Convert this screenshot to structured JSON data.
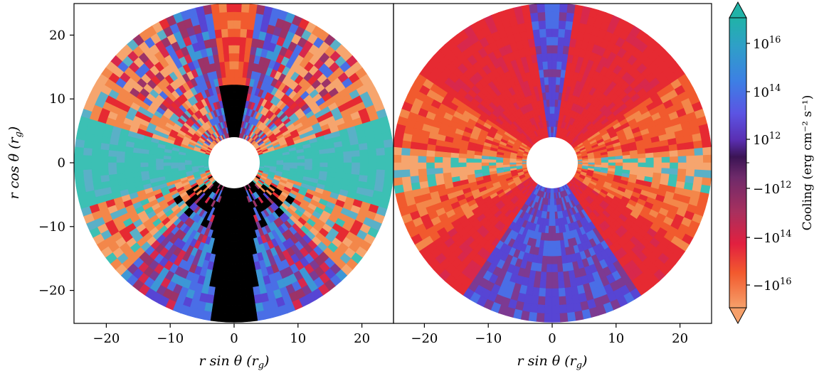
{
  "chart_data": [
    {
      "type": "heatmap",
      "projection": "polar",
      "panel": "left",
      "xlabel": "r sin θ (r_g)",
      "ylabel": "r cos θ (r_g)",
      "xlim": [
        -25,
        25
      ],
      "ylim": [
        -25,
        25
      ],
      "xticks": [
        -20,
        -10,
        0,
        10,
        20
      ],
      "yticks": [
        20,
        10,
        0,
        -10,
        -20
      ],
      "r_inner": 4,
      "r_outer": 25,
      "zones": [
        {
          "theta_deg": [
            0,
            8
          ],
          "category": "heating_1e16"
        },
        {
          "theta_deg": [
            8,
            25
          ],
          "category": "mixed_cooling_heating"
        },
        {
          "theta_deg": [
            25,
            55
          ],
          "category": "mixed_heating_dominant"
        },
        {
          "theta_deg": [
            55,
            72
          ],
          "category": "mixed_orange_red"
        },
        {
          "theta_deg": [
            72,
            108
          ],
          "category": "cooling_1e16"
        },
        {
          "theta_deg": [
            108,
            135
          ],
          "category": "mixed_orange_red_teal"
        },
        {
          "theta_deg": [
            135,
            160
          ],
          "category": "mixed_cooling_heating"
        },
        {
          "theta_deg": [
            160,
            172
          ],
          "category": "cooling_1e14"
        },
        {
          "theta_deg": [
            172,
            180
          ],
          "category": "masked"
        }
      ]
    },
    {
      "type": "heatmap",
      "projection": "polar",
      "panel": "right",
      "xlabel": "r sin θ (r_g)",
      "xlim": [
        -25,
        25
      ],
      "ylim": [
        -25,
        25
      ],
      "xticks": [
        -20,
        -10,
        0,
        10,
        20
      ],
      "r_inner": 4,
      "r_outer": 25,
      "zones": [
        {
          "theta_deg": [
            0,
            8
          ],
          "category": "cooling_1e13"
        },
        {
          "theta_deg": [
            8,
            55
          ],
          "category": "heating_1e14"
        },
        {
          "theta_deg": [
            55,
            85
          ],
          "category": "heating_1e16"
        },
        {
          "theta_deg": [
            85,
            100
          ],
          "category": "mixed_orange_teal"
        },
        {
          "theta_deg": [
            100,
            125
          ],
          "category": "heating_1e16"
        },
        {
          "theta_deg": [
            125,
            145
          ],
          "category": "heating_1e14"
        },
        {
          "theta_deg": [
            145,
            180
          ],
          "category": "cooling_1e13"
        }
      ]
    }
  ],
  "colorbar": {
    "label": "Cooling (erg cm⁻² s⁻¹)",
    "tick_labels": [
      "10^16",
      "10^14",
      "10^12",
      "−10^12",
      "−10^14",
      "−10^16"
    ],
    "extend": "both",
    "colors": {
      "top_arrow": "#20b3a7",
      "bottom_arrow": "#f6a06a",
      "stops": [
        "#20b3a7",
        "#2f9fc8",
        "#3d7fe4",
        "#5b54e3",
        "#5a2fb3",
        "#451a63",
        "#6e2a6a",
        "#a8305e",
        "#e2203f",
        "#f25a2e",
        "#f6a06a"
      ]
    }
  },
  "colors": {
    "teal": "#3cc0b4",
    "light_teal": "#5ab0c7",
    "sky_blue": "#3c97d6",
    "blue": "#4a6ee6",
    "indigo": "#5745d4",
    "purple": "#7d3a92",
    "plum": "#9c3368",
    "crimson": "#d8284c",
    "red": "#e62a32",
    "orange_red": "#f15a2e",
    "orange": "#f3874a",
    "peach": "#f6a56e",
    "masked": "#000000",
    "horizon": "#ffffff"
  }
}
